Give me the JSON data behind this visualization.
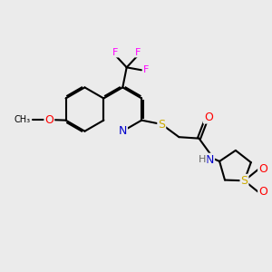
{
  "background_color": "#ebebeb",
  "bond_color": "#000000",
  "bond_width": 1.5,
  "dbo": 0.055,
  "atom_colors": {
    "N": "#0000cc",
    "O": "#ff0000",
    "S": "#ccaa00",
    "F": "#ff00ff",
    "C": "#000000"
  },
  "font_size": 8.0,
  "fig_width": 3.0,
  "fig_height": 3.0,
  "dpi": 100
}
